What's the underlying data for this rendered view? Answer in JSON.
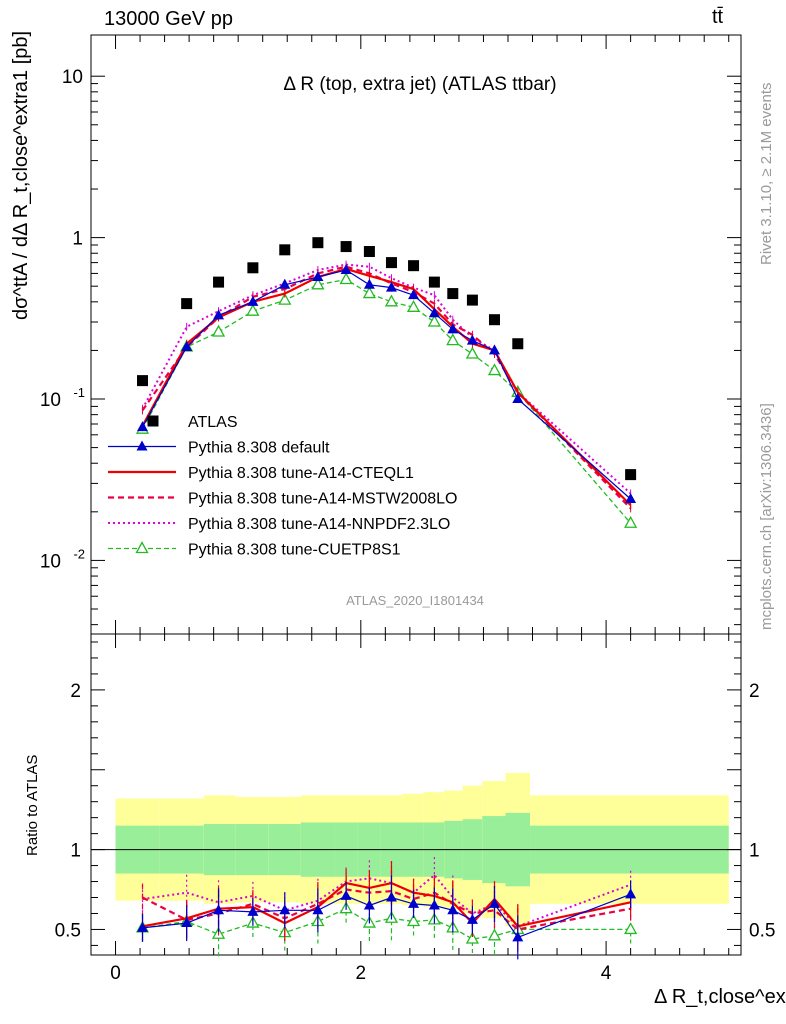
{
  "header": {
    "left": "13000 GeV pp",
    "right": "tt̄"
  },
  "side_text": {
    "rivet": "Rivet 3.1.10, ≥ 2.1M events",
    "mcplots": "mcplots.cern.ch [arXiv:1306.3436]"
  },
  "colors": {
    "atlas": "#000000",
    "default": "#0000cc",
    "cteql1": "#ee0000",
    "mstw": "#ee0044",
    "nnpdf": "#dd00dd",
    "cuetp8s1": "#22bb22",
    "band_inner": "#99ee99",
    "band_outer": "#ffff99",
    "watermark": "#9a9a9a"
  },
  "chart_data": [
    {
      "type": "scatter",
      "title": "Δ R (top, extra jet) (ATLAS ttbar)",
      "ylabel": "dσ^ttA / dΔ R_t,close^extra1 [pb]",
      "yscale": "log",
      "ylim": [
        0.0035,
        18
      ],
      "xlim": [
        -0.2,
        5.1
      ],
      "watermark": "ATLAS_2020_I1801434",
      "ytick_labels": [
        "10^-2",
        "10^-1",
        "1",
        "10"
      ],
      "x": [
        0.22,
        0.58,
        0.84,
        1.12,
        1.38,
        1.65,
        1.88,
        2.07,
        2.25,
        2.43,
        2.6,
        2.75,
        2.91,
        3.09,
        3.28,
        4.2
      ],
      "series": [
        {
          "name": "ATLAS",
          "style": "data",
          "values": [
            0.13,
            0.39,
            0.53,
            0.65,
            0.84,
            0.93,
            0.88,
            0.82,
            0.7,
            0.67,
            0.53,
            0.45,
            0.41,
            0.31,
            0.22,
            0.034
          ]
        },
        {
          "name": "Pythia 8.308 default",
          "style": "default",
          "values": [
            0.067,
            0.21,
            0.33,
            0.4,
            0.51,
            0.57,
            0.63,
            0.51,
            0.49,
            0.44,
            0.34,
            0.27,
            0.23,
            0.2,
            0.1,
            0.024
          ]
        },
        {
          "name": "Pythia 8.308 tune-A14-CTEQL1",
          "style": "cteql1",
          "values": [
            0.068,
            0.22,
            0.32,
            0.4,
            0.45,
            0.57,
            0.64,
            0.58,
            0.53,
            0.48,
            0.36,
            0.28,
            0.22,
            0.2,
            0.11,
            0.022
          ]
        },
        {
          "name": "Pythia 8.308 tune-A14-MSTW2008LO",
          "style": "mstw",
          "values": [
            0.085,
            0.21,
            0.32,
            0.43,
            0.48,
            0.6,
            0.66,
            0.6,
            0.52,
            0.46,
            0.39,
            0.29,
            0.25,
            0.19,
            0.11,
            0.021
          ]
        },
        {
          "name": "Pythia 8.308 tune-A14-NNPDF2.3LO",
          "style": "nnpdf",
          "values": [
            0.087,
            0.28,
            0.35,
            0.44,
            0.52,
            0.63,
            0.68,
            0.66,
            0.56,
            0.49,
            0.44,
            0.31,
            0.24,
            0.2,
            0.11,
            0.026
          ]
        },
        {
          "name": "Pythia 8.308 tune-CUETP8S1",
          "style": "cuetp8s1",
          "values": [
            0.065,
            0.21,
            0.26,
            0.35,
            0.41,
            0.51,
            0.55,
            0.45,
            0.4,
            0.37,
            0.3,
            0.23,
            0.19,
            0.15,
            0.11,
            0.017
          ]
        }
      ]
    },
    {
      "type": "scatter",
      "ylabel": "Ratio to ATLAS",
      "ylim": [
        0.34,
        2.35
      ],
      "xlim": [
        -0.2,
        5.1
      ],
      "xlabel": "Δ R_t,close^extra1",
      "xtick_labels": [
        "0",
        "2",
        "4"
      ],
      "ytick_labels": [
        "0.5",
        "1",
        "2"
      ],
      "band_edges": [
        0,
        0.36,
        0.72,
        0.98,
        1.25,
        1.51,
        1.79,
        1.97,
        2.16,
        2.34,
        2.51,
        2.68,
        2.83,
        2.99,
        3.18,
        3.38,
        5.0
      ],
      "band_inner_lo": [
        0.85,
        0.85,
        0.84,
        0.84,
        0.84,
        0.83,
        0.83,
        0.83,
        0.83,
        0.83,
        0.83,
        0.82,
        0.81,
        0.79,
        0.77,
        0.85
      ],
      "band_inner_hi": [
        1.15,
        1.15,
        1.16,
        1.16,
        1.16,
        1.17,
        1.17,
        1.17,
        1.17,
        1.17,
        1.17,
        1.18,
        1.19,
        1.21,
        1.23,
        1.15
      ],
      "band_outer_lo": [
        0.68,
        0.68,
        0.66,
        0.67,
        0.67,
        0.66,
        0.66,
        0.66,
        0.66,
        0.65,
        0.64,
        0.63,
        0.6,
        0.57,
        0.52,
        0.66
      ],
      "band_outer_hi": [
        1.32,
        1.32,
        1.34,
        1.33,
        1.33,
        1.34,
        1.34,
        1.34,
        1.34,
        1.35,
        1.36,
        1.37,
        1.4,
        1.43,
        1.48,
        1.34
      ],
      "x": [
        0.22,
        0.58,
        0.84,
        1.12,
        1.38,
        1.65,
        1.88,
        2.07,
        2.25,
        2.43,
        2.6,
        2.75,
        2.91,
        3.09,
        3.28,
        4.2
      ],
      "series": [
        {
          "name": "Pythia 8.308 default",
          "style": "default",
          "values": [
            0.51,
            0.54,
            0.62,
            0.61,
            0.62,
            0.62,
            0.71,
            0.65,
            0.7,
            0.66,
            0.65,
            0.62,
            0.56,
            0.66,
            0.45,
            0.72
          ]
        },
        {
          "name": "Pythia 8.308 tune-A14-CTEQL1",
          "style": "cteql1",
          "values": [
            0.52,
            0.57,
            0.63,
            0.64,
            0.54,
            0.64,
            0.79,
            0.76,
            0.79,
            0.73,
            0.71,
            0.67,
            0.54,
            0.69,
            0.52,
            0.67
          ]
        },
        {
          "name": "Pythia 8.308 tune-A14-MSTW2008LO",
          "style": "mstw",
          "values": [
            0.7,
            0.56,
            0.6,
            0.66,
            0.57,
            0.66,
            0.75,
            0.73,
            0.74,
            0.69,
            0.73,
            0.66,
            0.6,
            0.62,
            0.5,
            0.63
          ]
        },
        {
          "name": "Pythia 8.308 tune-A14-NNPDF2.3LO",
          "style": "nnpdf",
          "values": [
            0.69,
            0.73,
            0.67,
            0.71,
            0.62,
            0.68,
            0.8,
            0.82,
            0.79,
            0.73,
            0.84,
            0.7,
            0.6,
            0.66,
            0.52,
            0.78
          ]
        },
        {
          "name": "Pythia 8.308 tune-CUETP8S1",
          "style": "cuetp8s1",
          "values": [
            0.51,
            0.55,
            0.47,
            0.54,
            0.48,
            0.55,
            0.63,
            0.54,
            0.57,
            0.55,
            0.56,
            0.51,
            0.44,
            0.46,
            0.5,
            0.5
          ]
        }
      ]
    }
  ]
}
